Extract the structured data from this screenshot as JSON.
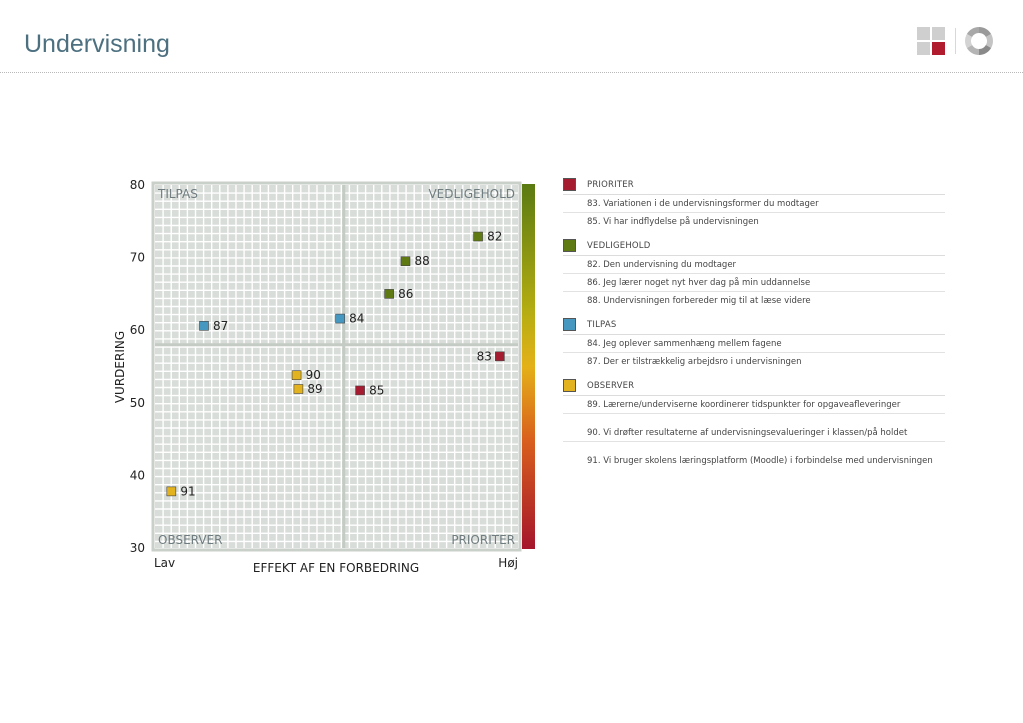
{
  "header": {
    "title": "Undervisning"
  },
  "colors": {
    "prioriter": "#a51c30",
    "vedligehold": "#5f7a12",
    "tilpas": "#4798c0",
    "observer": "#e3b31f",
    "title": "#4d7080",
    "grid_bg": "#d9ddd9",
    "grid_line": "#ffffff"
  },
  "chart_data": {
    "type": "scatter",
    "xlabel": "EFFEKT AF EN FORBEDRING",
    "ylabel": "VURDERING",
    "x_axis_labels": {
      "low": "Lav",
      "high": "Høj"
    },
    "xlim": [
      0,
      100
    ],
    "ylim": [
      30,
      80
    ],
    "y_ticks": [
      80,
      70,
      60,
      50,
      40,
      30
    ],
    "x_scale": "relative (no numeric ticks)",
    "quadrant_divider": {
      "x": 52,
      "y": 58
    },
    "quadrants": {
      "top_left": "TILPAS",
      "top_right": "VEDLIGEHOLD",
      "bottom_left": "OBSERVER",
      "bottom_right": "PRIORITER"
    },
    "color_scale": "vertical gradient green (top) → yellow → red (bottom)",
    "points": [
      {
        "label": "82",
        "x": 89,
        "y": 72.9,
        "group": "vedligehold"
      },
      {
        "label": "88",
        "x": 69,
        "y": 69.5,
        "group": "vedligehold"
      },
      {
        "label": "86",
        "x": 64.5,
        "y": 65,
        "group": "vedligehold"
      },
      {
        "label": "84",
        "x": 51,
        "y": 61.6,
        "group": "tilpas"
      },
      {
        "label": "87",
        "x": 13.5,
        "y": 60.6,
        "group": "tilpas"
      },
      {
        "label": "83",
        "x": 95,
        "y": 56.4,
        "group": "prioriter"
      },
      {
        "label": "90",
        "x": 39,
        "y": 53.8,
        "group": "observer"
      },
      {
        "label": "89",
        "x": 39.5,
        "y": 51.9,
        "group": "observer"
      },
      {
        "label": "85",
        "x": 56.5,
        "y": 51.7,
        "group": "prioriter"
      },
      {
        "label": "91",
        "x": 4.5,
        "y": 37.8,
        "group": "observer"
      }
    ]
  },
  "legend": {
    "groups": [
      {
        "key": "prioriter",
        "name": "PRIORITER",
        "items": [
          "83. Variationen i de undervisningsformer du modtager",
          "85. Vi har indflydelse på undervisningen"
        ]
      },
      {
        "key": "vedligehold",
        "name": "VEDLIGEHOLD",
        "items": [
          "82. Den undervisning du modtager",
          "86. Jeg lærer noget nyt hver dag på min uddannelse",
          "88. Undervisningen forbereder mig til at læse videre"
        ]
      },
      {
        "key": "tilpas",
        "name": "TILPAS",
        "items": [
          "84. Jeg oplever sammenhæng mellem fagene",
          "87. Der er tilstrækkelig arbejdsro i undervisningen"
        ]
      },
      {
        "key": "observer",
        "name": "OBSERVER",
        "items": [
          "89. Lærerne/underviserne koordinerer tidspunkter for opgaveafleveringer",
          "90. Vi drøfter resultaterne af undervisningsevalueringer i klassen/på holdet",
          "91. Vi bruger skolens læringsplatform (Moodle) i forbindelse med undervisningen"
        ]
      }
    ]
  }
}
